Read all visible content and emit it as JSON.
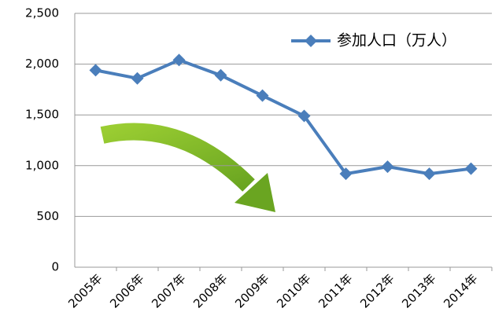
{
  "chart_data": {
    "type": "line",
    "categories": [
      "2005年",
      "2006年",
      "2007年",
      "2008年",
      "2009年",
      "2010年",
      "2011年",
      "2012年",
      "2013年",
      "2014年"
    ],
    "series": [
      {
        "name": "参加人口（万人）",
        "color": "#4a7ebb",
        "values": [
          1940,
          1860,
          2040,
          1890,
          1690,
          1490,
          920,
          990,
          920,
          970
        ]
      }
    ],
    "ylim": [
      0,
      2500
    ],
    "yticks": [
      0,
      500,
      {
        "value": 1000,
        "label": "1,000"
      },
      {
        "value": 1500,
        "label": "1,500"
      },
      {
        "value": 2000,
        "label": "2,000"
      },
      {
        "value": 2500,
        "label": "2,500"
      }
    ],
    "grid": true,
    "legend": "top-right"
  }
}
